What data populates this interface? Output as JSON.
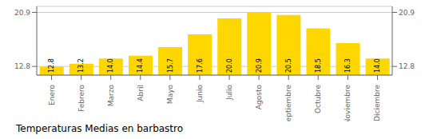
{
  "chart_data": {
    "type": "bar",
    "title": "Temperaturas Medias en barbastro",
    "categories": [
      "Enero",
      "Febrero",
      "Marzo",
      "Abril",
      "Mayo",
      "Junio",
      "Julio",
      "Agosto",
      "Septiembre",
      "Octubre",
      "Noviembre",
      "Diciembre"
    ],
    "values": [
      12.8,
      13.2,
      14.0,
      14.4,
      15.7,
      17.6,
      20.0,
      20.9,
      20.5,
      18.5,
      16.3,
      14.0
    ],
    "value_labels": [
      "12.8",
      "13.2",
      "14.0",
      "14.4",
      "15.7",
      "17.6",
      "20.0",
      "20.9",
      "20.5",
      "18.5",
      "16.3",
      "14.0"
    ],
    "color": "#FFD700",
    "ylim": [
      11.5,
      21.8
    ],
    "yticks": [
      12.8,
      20.9
    ],
    "grid": true,
    "data_labels": true
  }
}
